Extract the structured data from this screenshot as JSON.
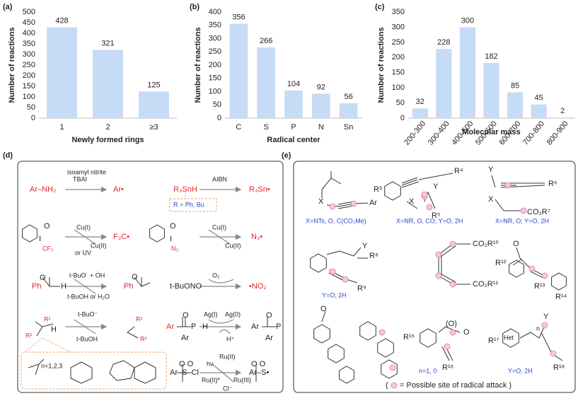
{
  "chart_data": [
    {
      "type": "bar",
      "label": "(a)",
      "ylabel": "Number of reactions",
      "xlabel": "Newly formed rings",
      "categories": [
        "1",
        "2",
        "≥3"
      ],
      "values": [
        428,
        321,
        125
      ],
      "color": "#c6dbf5",
      "ylim": [
        0,
        500
      ],
      "yticks": [
        0,
        50,
        100,
        150,
        200,
        250,
        300,
        350,
        400,
        450,
        500
      ]
    },
    {
      "type": "bar",
      "label": "(b)",
      "ylabel": "Number of reactions",
      "xlabel": "Radical center",
      "categories": [
        "C",
        "S",
        "P",
        "N",
        "Sn"
      ],
      "values": [
        356,
        266,
        104,
        92,
        56
      ],
      "color": "#c6dbf5",
      "ylim": [
        0,
        400
      ],
      "yticks": [
        0,
        50,
        100,
        150,
        200,
        250,
        300,
        350,
        400
      ]
    },
    {
      "type": "bar",
      "label": "(c)",
      "ylabel": "Number of reactions",
      "xlabel": "Molecular mass",
      "categories": [
        "200-300",
        "300-400",
        "400-500",
        "500-600",
        "600-700",
        "700-800",
        "800-900"
      ],
      "values": [
        32,
        228,
        300,
        182,
        85,
        45,
        2
      ],
      "color": "#c6dbf5",
      "ylim": [
        0,
        350
      ],
      "yticks": [
        0,
        50,
        100,
        150,
        200,
        250,
        300,
        350
      ]
    }
  ],
  "panel_d": {
    "label": "(d)",
    "labels": [
      "isoamyl nitrite",
      "TBAI",
      "Ar–NH₂",
      "Ar•",
      "R₃SnH",
      "AIBN",
      "R₃Sn•",
      "R  =  Ph, Bu",
      "CF₃",
      "Cu(I)",
      "Cu(II)",
      "or UV",
      "F₃C•",
      "N₃",
      "Cu(I)",
      "Cu(II)",
      "N₃•",
      "Ph",
      "H",
      "t-BuO˙ + ȮH",
      "t-BuOH  or  H₂O",
      "Ph",
      "t-BuONO",
      "O₂",
      "•NO₂",
      "R¹",
      "R²",
      "H",
      "t-BuO⁻",
      "t-BuOH",
      "R¹",
      "R²",
      "Ar",
      "P",
      "H",
      "Ar",
      "Ag(I)",
      "Ag(0)",
      "H⁺",
      "Ar",
      "P",
      "Ar",
      "n=1,2,3",
      "Ar–S–Cl",
      "hν",
      "Ru(II)",
      "Ru(II)*",
      "Ru(III)",
      "Cl⁻",
      "Ar–S•",
      "O",
      "I",
      "O",
      "I",
      "O",
      "O",
      "O",
      "O",
      "O O",
      "O O"
    ]
  },
  "panel_e": {
    "label": "(e)",
    "labels": [
      "Ar",
      "X",
      "X=NTs, O, C(CO₂Me)",
      "R⁴",
      "R³",
      "X",
      "Y",
      "R⁵",
      "X=NR, O, CO; Y=O, 2H",
      "Y",
      "X",
      "R⁶",
      "CO₂R⁷",
      "X=NR, O; Y=O, 2H",
      "Y",
      "R⁸",
      "R⁹",
      "Y=O, 2H",
      "CO₂R¹⁰",
      "CO₂R¹¹",
      "O",
      "R¹²",
      "R¹³",
      "R¹⁴",
      "O",
      "R¹⁵",
      "(O)",
      "O",
      "R¹⁶",
      "n=1, 0",
      "R¹⁷",
      "Het",
      "n",
      "Y",
      "R¹⁸",
      "Y=O, 2H",
      "(",
      "= Possible site of radical attack )"
    ]
  }
}
